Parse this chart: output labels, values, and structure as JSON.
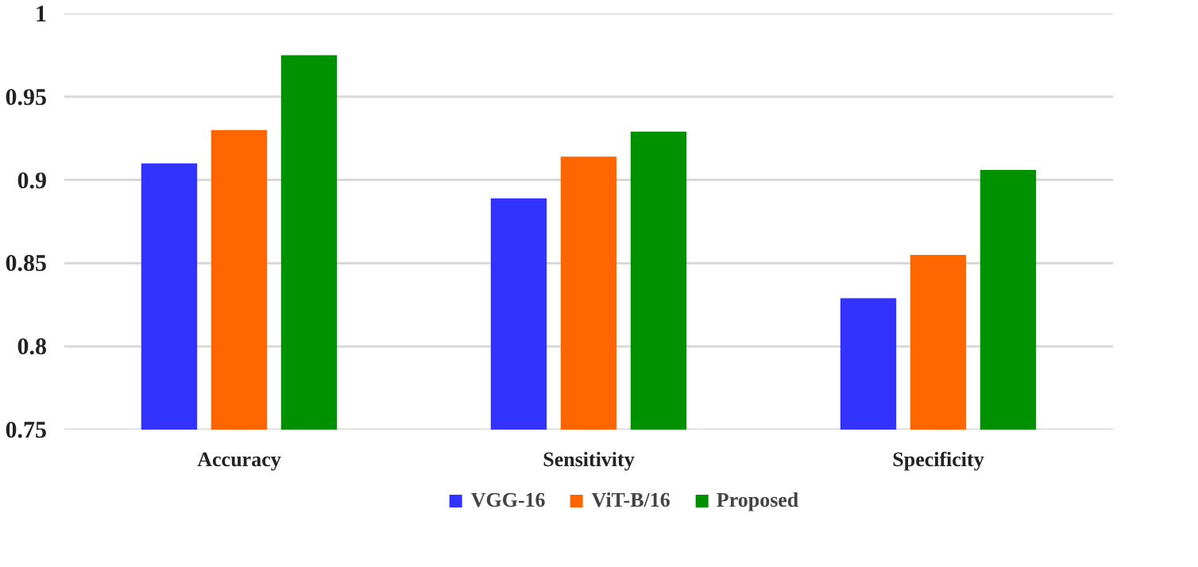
{
  "chart_data": {
    "type": "bar",
    "categories": [
      "Accuracy",
      "Sensitivity",
      "Specificity"
    ],
    "series": [
      {
        "name": "VGG-16",
        "color": "#3333ff",
        "values": [
          0.91,
          0.889,
          0.829
        ]
      },
      {
        "name": "ViT-B/16",
        "color": "#ff6600",
        "values": [
          0.93,
          0.914,
          0.855
        ]
      },
      {
        "name": "Proposed",
        "color": "#009100",
        "values": [
          0.975,
          0.929,
          0.906
        ]
      }
    ],
    "ylim": [
      0.75,
      1
    ],
    "yticks": [
      0.75,
      0.8,
      0.85,
      0.9,
      0.95,
      1
    ],
    "grid": "y",
    "legend": "bottom"
  }
}
